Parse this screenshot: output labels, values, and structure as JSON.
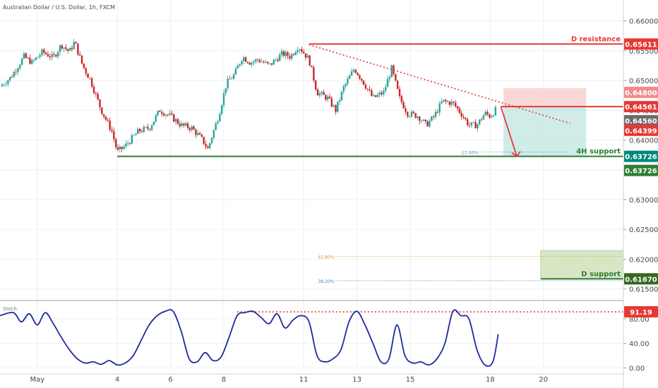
{
  "header": {
    "symbol_title": "Australian Dollar / U.S. Dollar, 1h, FXCM"
  },
  "colors": {
    "bull": "#26a69a",
    "bear": "#c62828",
    "resistance": "#e53935",
    "support": "#2e7d32",
    "support_4h_badge": "#00897b",
    "d_support_badge": "#33691e",
    "stoch_line": "#1e2a9c",
    "current_badge": "#6b6b6b",
    "grid": "#eef0f3",
    "text": "#4a4a4a"
  },
  "chart_data": [
    {
      "type": "candlestick",
      "name": "price",
      "x_labels": [
        {
          "day": 1,
          "label": "May"
        },
        {
          "day": 4,
          "label": "4"
        },
        {
          "day": 6,
          "label": "6"
        },
        {
          "day": 8,
          "label": "8"
        },
        {
          "day": 11,
          "label": "11"
        },
        {
          "day": 13,
          "label": "13"
        },
        {
          "day": 15,
          "label": "15"
        },
        {
          "day": 18,
          "label": "18"
        },
        {
          "day": 20,
          "label": "20"
        }
      ],
      "y_ticks": [
        0.66,
        0.655,
        0.65,
        0.645,
        0.64,
        0.635,
        0.63,
        0.625,
        0.62,
        0.615
      ],
      "y_tick_labels": [
        "0.66000",
        "0.65500",
        "0.65000",
        "0.64500",
        "0.64000",
        "0.63500",
        "0.63000",
        "0.62500",
        "0.62000",
        "0.61500"
      ],
      "ylim": [
        0.6133,
        0.6635
      ],
      "xlim": [
        -0.4,
        23.0
      ],
      "path_anchors": [
        [
          -0.4,
          0.649
        ],
        [
          0.0,
          0.6505
        ],
        [
          0.5,
          0.654
        ],
        [
          0.8,
          0.653
        ],
        [
          1.2,
          0.6548
        ],
        [
          1.6,
          0.6538
        ],
        [
          1.9,
          0.656
        ],
        [
          2.2,
          0.6548
        ],
        [
          2.4,
          0.6565
        ],
        [
          2.7,
          0.6525
        ],
        [
          3.0,
          0.65
        ],
        [
          3.4,
          0.645
        ],
        [
          3.8,
          0.6415
        ],
        [
          4.0,
          0.638
        ],
        [
          4.3,
          0.639
        ],
        [
          4.8,
          0.6415
        ],
        [
          5.2,
          0.642
        ],
        [
          5.6,
          0.645
        ],
        [
          6.0,
          0.644
        ],
        [
          6.4,
          0.6425
        ],
        [
          6.8,
          0.642
        ],
        [
          7.2,
          0.64
        ],
        [
          7.4,
          0.6385
        ],
        [
          7.8,
          0.644
        ],
        [
          8.1,
          0.6495
        ],
        [
          8.4,
          0.651
        ],
        [
          8.7,
          0.654
        ],
        [
          9.0,
          0.653
        ],
        [
          9.3,
          0.6535
        ],
        [
          9.7,
          0.6525
        ],
        [
          10.2,
          0.6545
        ],
        [
          10.5,
          0.654
        ],
        [
          10.8,
          0.6558
        ],
        [
          11.2,
          0.6535
        ],
        [
          11.5,
          0.648
        ],
        [
          11.9,
          0.647
        ],
        [
          12.2,
          0.645
        ],
        [
          12.5,
          0.6488
        ],
        [
          12.9,
          0.652
        ],
        [
          13.2,
          0.65
        ],
        [
          13.6,
          0.647
        ],
        [
          14.0,
          0.648
        ],
        [
          14.3,
          0.652
        ],
        [
          14.6,
          0.647
        ],
        [
          14.9,
          0.6445
        ],
        [
          15.3,
          0.644
        ],
        [
          15.6,
          0.6425
        ],
        [
          15.9,
          0.644
        ],
        [
          16.2,
          0.6465
        ],
        [
          16.6,
          0.6462
        ],
        [
          16.9,
          0.6445
        ],
        [
          17.2,
          0.6425
        ],
        [
          17.5,
          0.6425
        ],
        [
          17.8,
          0.6445
        ],
        [
          18.0,
          0.644
        ],
        [
          18.2,
          0.64506
        ]
      ],
      "price_labels": [
        "0.64800",
        "0.64399"
      ],
      "current_price_label": "0.64560",
      "levels": [
        {
          "name": "d-resistance",
          "label": "D resistance",
          "value": 0.65611,
          "value_label": "0.65611",
          "x_from": 11.2,
          "x_to": 23.0
        },
        {
          "name": "entry-level",
          "value": 0.64561,
          "value_label": "0.64561",
          "x_from": 18.4,
          "x_to": 23.0
        },
        {
          "name": "4h-support",
          "label": "4H support",
          "value": 0.63726,
          "value_label": "0.63726",
          "second_label": "0.63726",
          "x_from": 4.0,
          "x_to": 23.0
        },
        {
          "name": "d-support",
          "label": "D support",
          "value": 0.6167,
          "value_label": "0.61670",
          "x_from": 19.9,
          "x_to": 23.0
        }
      ],
      "trendline": {
        "x1": 11.2,
        "y1": 0.656,
        "x2": 21.0,
        "y2": 0.6428
      },
      "risk_box": {
        "x1": 18.5,
        "x2": 21.6,
        "y_top": 0.6487,
        "y_mid": 0.64561,
        "y_bot": 0.63726
      },
      "fib_small": {
        "label": "-27.00%",
        "value": 0.638,
        "x_from": 17.6,
        "x_to": 20.9
      },
      "fib_zone": {
        "x1": 19.9,
        "x2": 23.0,
        "y_top": 0.62145,
        "y_bot": 0.6167
      },
      "fib_lines": [
        {
          "label": "61.80%",
          "value": 0.62045,
          "x_from": 12.2,
          "x_to": 23.0
        },
        {
          "label": "38.20%",
          "value": 0.6164,
          "x_from": 12.2,
          "x_to": 23.0
        }
      ],
      "arrow": {
        "x1": 18.4,
        "y1": 0.64561,
        "x2": 19.0,
        "y2": 0.63726
      }
    },
    {
      "type": "line",
      "name": "stochastic",
      "title": "Stoch",
      "y_ticks": [
        0,
        40,
        80
      ],
      "y_tick_labels": [
        "0.00",
        "40.00",
        "80.00"
      ],
      "ylim": [
        -5,
        105
      ],
      "level": {
        "value": 91.19,
        "label": "91.19",
        "x_from": 8.5,
        "x_to": 23.0
      },
      "x": [
        -0.4,
        0.1,
        0.4,
        0.7,
        1.0,
        1.3,
        1.6,
        1.9,
        2.2,
        2.5,
        2.8,
        3.1,
        3.4,
        3.7,
        4.0,
        4.3,
        4.6,
        4.9,
        5.2,
        5.5,
        5.8,
        6.1,
        6.4,
        6.7,
        7.0,
        7.3,
        7.6,
        7.9,
        8.2,
        8.5,
        8.8,
        9.1,
        9.4,
        9.7,
        10.0,
        10.3,
        10.6,
        10.9,
        11.2,
        11.5,
        11.8,
        12.1,
        12.4,
        12.7,
        13.0,
        13.3,
        13.6,
        13.9,
        14.2,
        14.5,
        14.8,
        15.1,
        15.4,
        15.7,
        16.0,
        16.3,
        16.6,
        16.9,
        17.2,
        17.5,
        17.8,
        18.1,
        18.3
      ],
      "values": [
        85,
        90,
        75,
        88,
        70,
        90,
        72,
        50,
        30,
        15,
        8,
        10,
        6,
        12,
        5,
        8,
        20,
        45,
        70,
        85,
        92,
        92,
        60,
        15,
        10,
        25,
        12,
        18,
        50,
        85,
        90,
        92,
        82,
        72,
        88,
        65,
        78,
        85,
        75,
        20,
        10,
        15,
        30,
        75,
        92,
        70,
        40,
        10,
        15,
        70,
        20,
        8,
        10,
        5,
        15,
        40,
        92,
        85,
        80,
        30,
        5,
        10,
        55
      ]
    }
  ]
}
